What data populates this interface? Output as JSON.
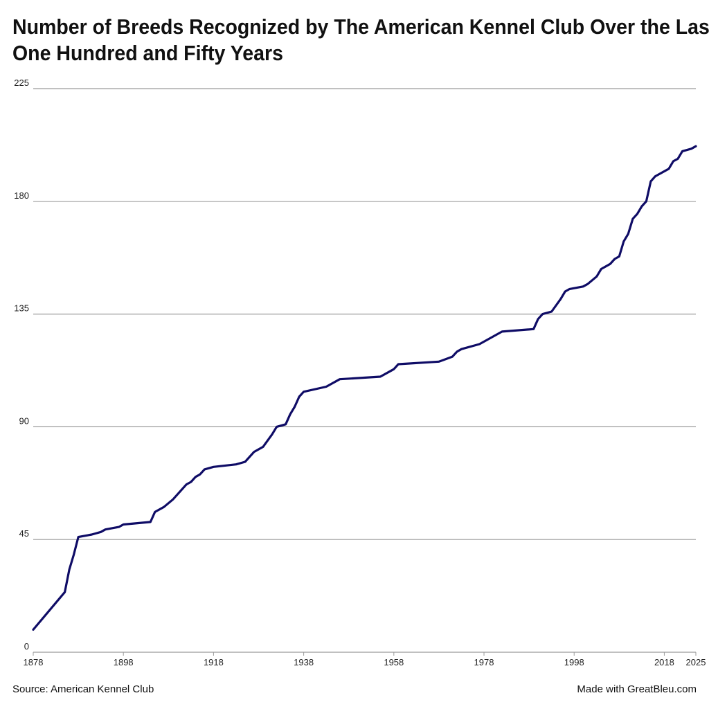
{
  "chart_data": {
    "type": "line",
    "title_lines": [
      "Number of Breeds Recognized by The American Kennel Club Over the Last",
      "One Hundred and Fifty Years"
    ],
    "xlabel": "",
    "ylabel": "",
    "xlim": [
      1878,
      2025
    ],
    "ylim": [
      0,
      225
    ],
    "x_ticks": [
      1878,
      1898,
      1918,
      1938,
      1958,
      1978,
      1998,
      2018,
      2025
    ],
    "y_ticks": [
      0,
      45,
      90,
      135,
      180,
      225
    ],
    "grid": "horizontal",
    "line_color": "#0f0c66",
    "series": [
      {
        "points": [
          [
            1878,
            9
          ],
          [
            1885,
            24
          ],
          [
            1886,
            33
          ],
          [
            1887,
            39
          ],
          [
            1888,
            46
          ],
          [
            1891,
            47
          ],
          [
            1893,
            48
          ],
          [
            1894,
            49
          ],
          [
            1897,
            50
          ],
          [
            1898,
            51
          ],
          [
            1904,
            52
          ],
          [
            1905,
            56
          ],
          [
            1907,
            58
          ],
          [
            1909,
            61
          ],
          [
            1911,
            65
          ],
          [
            1912,
            67
          ],
          [
            1913,
            68
          ],
          [
            1914,
            70
          ],
          [
            1915,
            71
          ],
          [
            1916,
            73
          ],
          [
            1918,
            74
          ],
          [
            1923,
            75
          ],
          [
            1925,
            76
          ],
          [
            1927,
            80
          ],
          [
            1929,
            82
          ],
          [
            1931,
            87
          ],
          [
            1932,
            90
          ],
          [
            1934,
            91
          ],
          [
            1935,
            95
          ],
          [
            1936,
            98
          ],
          [
            1937,
            102
          ],
          [
            1938,
            104
          ],
          [
            1943,
            106
          ],
          [
            1946,
            109
          ],
          [
            1955,
            110
          ],
          [
            1957,
            112
          ],
          [
            1958,
            113
          ],
          [
            1959,
            115
          ],
          [
            1968,
            116
          ],
          [
            1971,
            118
          ],
          [
            1972,
            120
          ],
          [
            1973,
            121
          ],
          [
            1977,
            123
          ],
          [
            1982,
            128
          ],
          [
            1989,
            129
          ],
          [
            1990,
            133
          ],
          [
            1991,
            135
          ],
          [
            1993,
            136
          ],
          [
            1995,
            141
          ],
          [
            1996,
            144
          ],
          [
            1997,
            145
          ],
          [
            2000,
            146
          ],
          [
            2001,
            147
          ],
          [
            2003,
            150
          ],
          [
            2004,
            153
          ],
          [
            2006,
            155
          ],
          [
            2007,
            157
          ],
          [
            2008,
            158
          ],
          [
            2009,
            164
          ],
          [
            2010,
            167
          ],
          [
            2011,
            173
          ],
          [
            2012,
            175
          ],
          [
            2013,
            178
          ],
          [
            2014,
            180
          ],
          [
            2015,
            188
          ],
          [
            2016,
            190
          ],
          [
            2019,
            193
          ],
          [
            2020,
            196
          ],
          [
            2021,
            197
          ],
          [
            2022,
            200
          ],
          [
            2024,
            201
          ],
          [
            2025,
            202
          ]
        ]
      }
    ]
  },
  "footer": {
    "source": "Source: American Kennel Club",
    "credit": "Made with GreatBleu.com"
  }
}
